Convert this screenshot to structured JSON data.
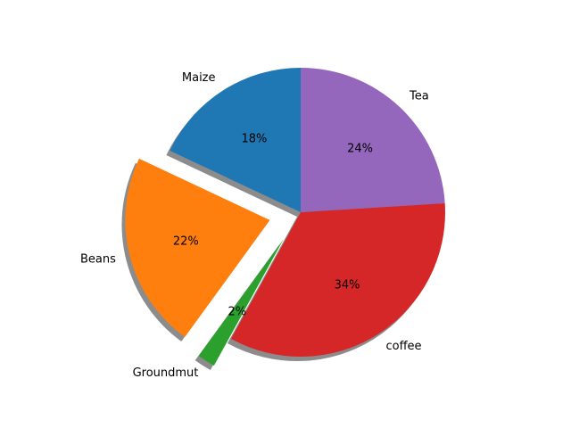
{
  "chart_data": {
    "type": "pie",
    "title": "",
    "categories": [
      "Maize",
      "Beans",
      "Groundmut",
      "coffee",
      "Tea"
    ],
    "values": [
      18,
      22,
      2,
      34,
      24
    ],
    "percent_labels": [
      "18%",
      "22%",
      "2%",
      "34%",
      "24%"
    ],
    "colors": [
      "#1f77b4",
      "#ff7f0e",
      "#2ca02c",
      "#d62728",
      "#9467bd"
    ],
    "exploded": [
      false,
      true,
      true,
      false,
      false
    ],
    "shadow": true,
    "start_angle_deg": 90,
    "direction": "counterclockwise",
    "legend": "none"
  }
}
